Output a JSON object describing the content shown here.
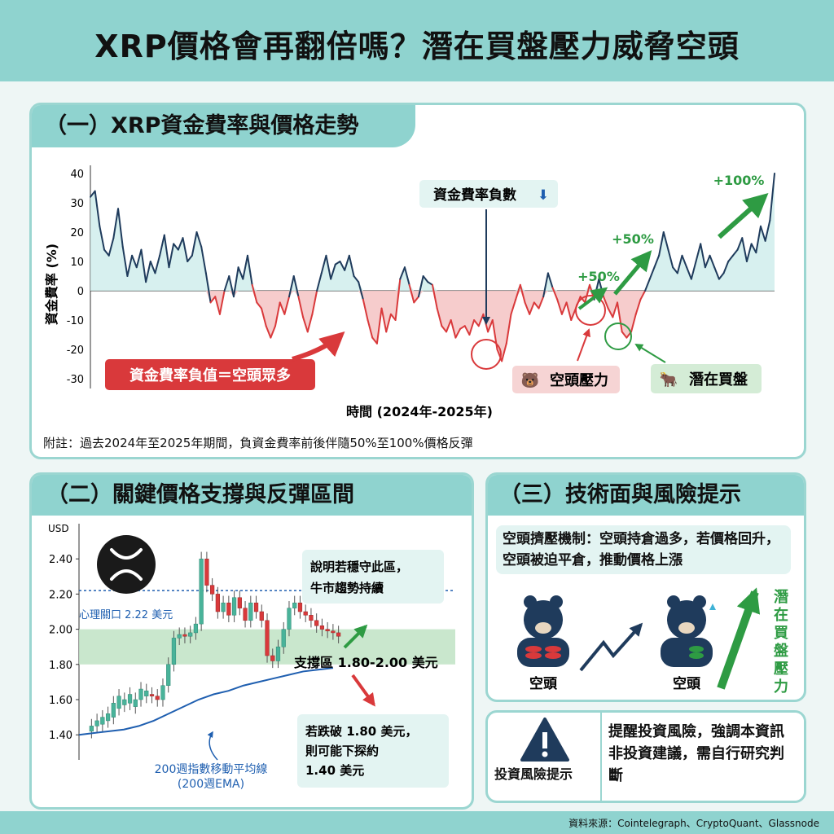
{
  "title": "XRP價格會再翻倍嗎？潛在買盤壓力威脅空頭",
  "sections": {
    "s1": "（一）XRP資金費率與價格走勢",
    "s2": "（二）關鍵價格支撐與反彈區間",
    "s3": "（三）技術面與風險提示"
  },
  "chart1": {
    "ylabel": "資金費率 (%)",
    "xlabel": "時間 (2024年-2025年)",
    "yticks": [
      "40",
      "30",
      "20",
      "10",
      "0",
      "-10",
      "-20",
      "-30"
    ],
    "ann_negative": "資金費率負數",
    "ann_negative_arrow": "⬇",
    "ann_bear_crowd": "資金費率負值＝空頭眾多",
    "ann_p50a": "+50%",
    "ann_p50b": "+50%",
    "ann_p100": "+100%",
    "ann_bear_pressure": "空頭壓力",
    "ann_buy": "潛在買盤",
    "note": "附註：過去2024年至2025年期間，負資金費率前後伴隨50%至100%價格反彈"
  },
  "chart2": {
    "unit": "USD",
    "yticks": [
      "2.40",
      "2.20",
      "2.00",
      "1.80",
      "1.60",
      "1.40"
    ],
    "psych_label": "心理關口 2.22 美元",
    "support_label": "支撐區 1.80-2.00 美元",
    "bull_note": "說明若穩守此區，牛市趨勢持續",
    "bear_note": "若跌破 1.80 美元，則可能下探約 1.40 美元",
    "ema_label_1": "200週指數移動平均線",
    "ema_label_2": "(200週EMA)"
  },
  "tech": {
    "mechanism": "空頭擠壓機制：空頭持倉過多，若價格回升，空頭被迫平倉，推動價格上漲",
    "bear1": "空頭",
    "bear2": "空頭",
    "pressure": "潛在買盤壓力"
  },
  "risk": {
    "label": "投資風險提示",
    "text": "提醒投資風險，強調本資訊非投資建議，需自行研究判斷"
  },
  "source": "資料來源：Cointelegraph、CryptoQuant、Glassnode",
  "colors": {
    "teal": "#8fd3cf",
    "navy": "#1f3b5c",
    "red": "#d9393b",
    "green": "#2e9b43",
    "blue": "#1f5fb0"
  },
  "chart_data": [
    {
      "type": "line",
      "title": "（一）XRP資金費率與價格走勢",
      "xlabel": "時間 (2024年-2025年)",
      "ylabel": "資金費率 (%)",
      "ylim": [
        -30,
        40
      ],
      "series": [
        {
          "values": [
            32,
            34,
            22,
            14,
            12,
            18,
            28,
            15,
            5,
            12,
            8,
            14,
            3,
            10,
            6,
            12,
            19,
            8,
            16,
            14,
            18,
            10,
            12,
            20,
            15,
            6,
            -4,
            -2,
            -8,
            0,
            5,
            -2,
            8,
            4,
            12,
            2,
            -4,
            -6,
            -12,
            -16,
            -12,
            -4,
            -8,
            -2,
            5,
            -2,
            -9,
            -14,
            -8,
            0,
            6,
            12,
            4,
            9,
            10,
            7,
            12,
            5,
            3,
            -3,
            -10,
            -16,
            -18,
            -6,
            -14,
            -8,
            -10,
            4,
            8,
            2,
            -4,
            -2,
            5,
            3,
            2,
            -6,
            -12,
            -14,
            -10,
            -16,
            -13,
            -12,
            -15,
            -10,
            -12,
            -8,
            -14,
            -10,
            -20,
            -24,
            -18,
            -8,
            -3,
            2,
            -4,
            -8,
            -4,
            -6,
            -2,
            6,
            1,
            -3,
            -8,
            -4,
            -10,
            -6,
            -2,
            -4,
            2,
            -3,
            4,
            -2,
            -6,
            -9,
            -4,
            -14,
            -16,
            -14,
            -8,
            -3,
            0,
            4,
            8,
            12,
            20,
            14,
            8,
            6,
            12,
            8,
            4,
            10,
            16,
            8,
            12,
            8,
            4,
            6,
            10,
            12,
            14,
            18,
            10,
            16,
            13,
            22,
            17,
            24,
            40
          ]
        }
      ]
    },
    {
      "type": "bar",
      "title": "（二）關鍵價格支撐與反彈區間",
      "ylabel": "USD",
      "ylim": [
        1.35,
        2.6
      ],
      "support_zone": [
        1.8,
        2.0
      ],
      "psychological_level": 2.22,
      "candles": [
        [
          1.42,
          1.45
        ],
        [
          1.45,
          1.48
        ],
        [
          1.46,
          1.5
        ],
        [
          1.48,
          1.52
        ],
        [
          1.5,
          1.58
        ],
        [
          1.55,
          1.62
        ],
        [
          1.57,
          1.6
        ],
        [
          1.58,
          1.63
        ],
        [
          1.56,
          1.6
        ],
        [
          1.6,
          1.66
        ],
        [
          1.62,
          1.65
        ],
        [
          1.63,
          1.62
        ],
        [
          1.62,
          1.6
        ],
        [
          1.6,
          1.68
        ],
        [
          1.68,
          1.8
        ],
        [
          1.8,
          1.95
        ],
        [
          1.95,
          1.97
        ],
        [
          1.97,
          1.96
        ],
        [
          1.96,
          1.98
        ],
        [
          1.98,
          2.03
        ],
        [
          2.03,
          2.4
        ],
        [
          2.4,
          2.25
        ],
        [
          2.25,
          2.2
        ],
        [
          2.2,
          2.1
        ],
        [
          2.1,
          2.15
        ],
        [
          2.15,
          2.08
        ],
        [
          2.08,
          2.18
        ],
        [
          2.18,
          2.12
        ],
        [
          2.12,
          2.05
        ],
        [
          2.05,
          2.15
        ],
        [
          2.15,
          2.1
        ],
        [
          2.1,
          2.05
        ],
        [
          2.05,
          1.85
        ],
        [
          1.85,
          1.82
        ],
        [
          1.82,
          1.9
        ],
        [
          1.9,
          2.0
        ],
        [
          2.0,
          2.12
        ],
        [
          2.12,
          2.15
        ],
        [
          2.15,
          2.1
        ],
        [
          2.1,
          2.08
        ],
        [
          2.08,
          2.05
        ],
        [
          2.05,
          2.02
        ],
        [
          2.02,
          2.0
        ],
        [
          2.0,
          1.99
        ],
        [
          1.99,
          1.98
        ],
        [
          1.98,
          1.96
        ]
      ],
      "ema_200w": [
        1.4,
        1.41,
        1.42,
        1.43,
        1.45,
        1.48,
        1.52,
        1.56,
        1.6,
        1.63,
        1.65,
        1.68,
        1.7,
        1.72,
        1.74,
        1.76,
        1.77,
        1.78
      ]
    }
  ]
}
